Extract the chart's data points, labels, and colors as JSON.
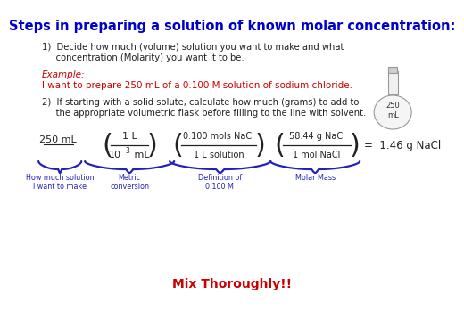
{
  "title": "Steps in preparing a solution of known molar concentration:",
  "title_color": "#0000CC",
  "title_fontsize": 10.5,
  "bg_color": "#ffffff",
  "step1_text": "1)  Decide how much (volume) solution you want to make and what\n     concentration (Molarity) you want it to be.",
  "step1_color": "#222222",
  "example_label": "Example:",
  "example_label_color": "#CC0000",
  "example_text": "I want to prepare 250 mL of a 0.100 M solution of sodium chloride.",
  "example_text_color": "#CC0000",
  "step2_text": "2)  If starting with a solid solute, calculate how much (grams) to add to\n     the appropriate volumetric flask before filling to the line with solvent.",
  "step2_color": "#222222",
  "mix_text": "Mix Thoroughly!!",
  "mix_color": "#CC0000",
  "flask_label": "250\nmL",
  "calc_250": "250 mL",
  "calc_frac1_num": "1 L",
  "calc_frac1_den_base": "10",
  "calc_frac1_den_exp": "3",
  "calc_frac1_den_unit": " mL",
  "calc_frac2_num": "0.100 mols NaCl",
  "calc_frac2_den": "1 L solution",
  "calc_frac3_num": "58.44 g NaCl",
  "calc_frac3_den": "1 mol NaCl",
  "calc_result": "=  1.46 g NaCl",
  "label1": "How much solution\nI want to make",
  "label2": "Metric\nconversion",
  "label3": "Definition of\n0.100 M",
  "label4": "Molar Mass",
  "brace_color": "#2222BB",
  "label_color": "#2222BB",
  "text_color": "#222222"
}
